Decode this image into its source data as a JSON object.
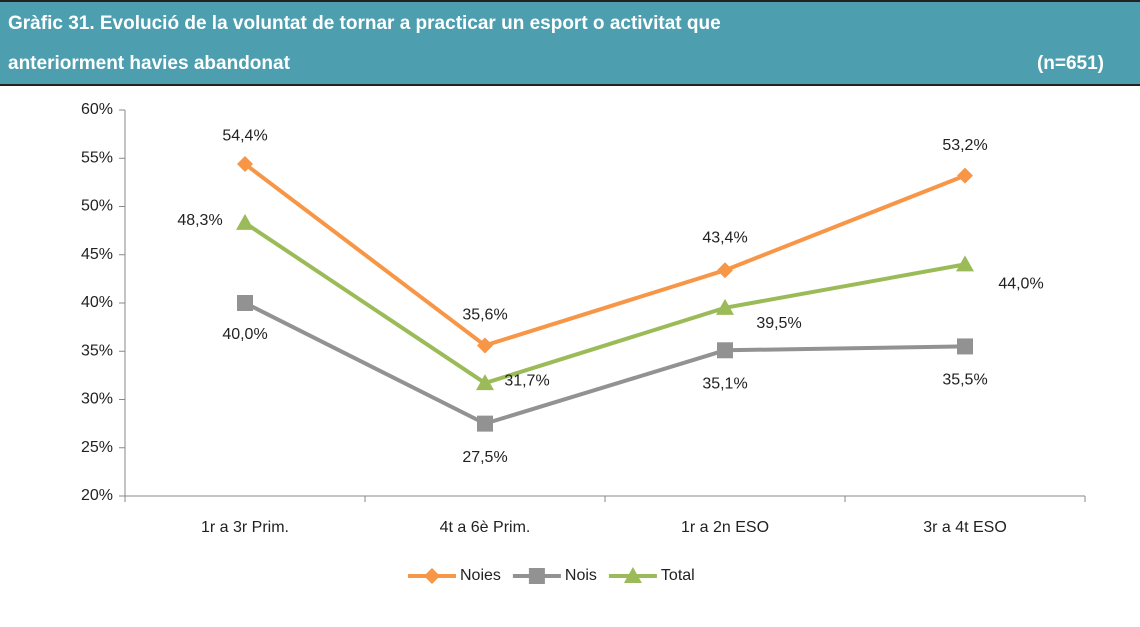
{
  "chart_data": {
    "type": "line",
    "title": [
      "Gràfic 31. Evolució de la voluntat de tornar a practicar un esport o activitat que",
      "anteriorment havies abandonat"
    ],
    "note": "(n=651)",
    "categories": [
      "1r a 3r Prim.",
      "4t a 6è Prim.",
      "1r a 2n ESO",
      "3r a 4t ESO"
    ],
    "series": [
      {
        "name": "Noies",
        "color": "#f79646",
        "marker": "diamond",
        "values": [
          54.4,
          35.6,
          43.4,
          53.2
        ],
        "value_labels": [
          "54,4%",
          "35,6%",
          "43,4%",
          "53,2%"
        ]
      },
      {
        "name": "Nois",
        "color": "#929292",
        "marker": "square",
        "values": [
          40.0,
          27.5,
          35.1,
          35.5
        ],
        "value_labels": [
          "40,0%",
          "27,5%",
          "35,1%",
          "35,5%"
        ]
      },
      {
        "name": "Total",
        "color": "#9bbb59",
        "marker": "triangle",
        "values": [
          48.3,
          31.7,
          39.5,
          44.0
        ],
        "value_labels": [
          "48,3%",
          "31,7%",
          "39,5%",
          "44,0%"
        ]
      }
    ],
    "ylim": [
      20,
      60
    ],
    "yticks": [
      {
        "value": 20,
        "label": "20%"
      },
      {
        "value": 25,
        "label": "25%"
      },
      {
        "value": 30,
        "label": "30%"
      },
      {
        "value": 35,
        "label": "35%"
      },
      {
        "value": 40,
        "label": "40%"
      },
      {
        "value": 45,
        "label": "45%"
      },
      {
        "value": 50,
        "label": "50%"
      },
      {
        "value": 55,
        "label": "55%"
      },
      {
        "value": 60,
        "label": "60%"
      }
    ],
    "legend": "bottom"
  }
}
